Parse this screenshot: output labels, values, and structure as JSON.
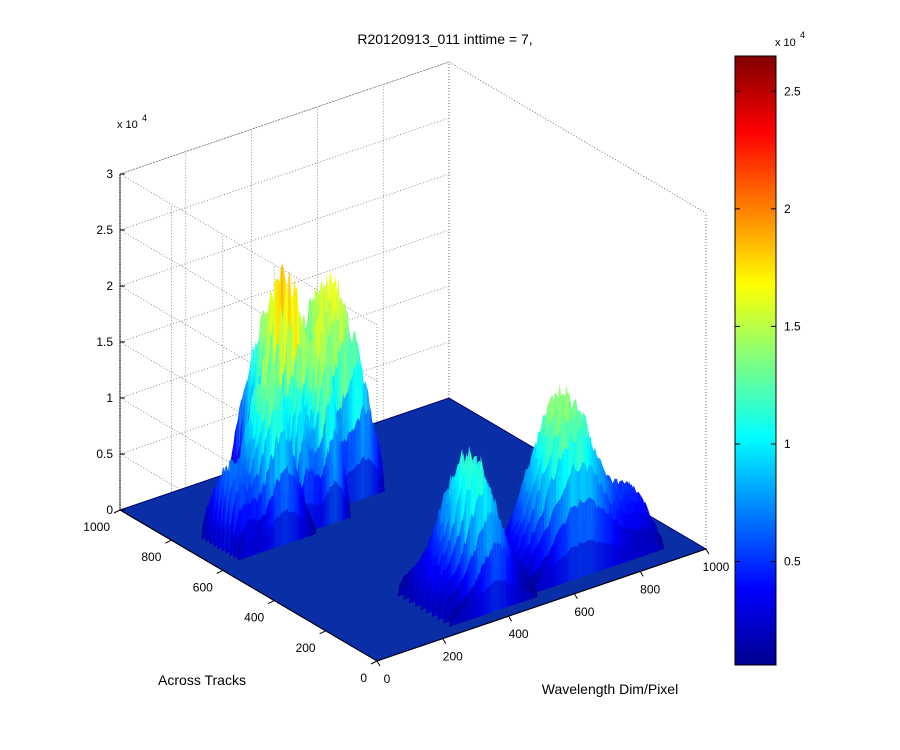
{
  "chart_data": {
    "type": "surface",
    "title": "R20120913_011 inttime = 7,",
    "xlabel": "Wavelength Dim/Pixel",
    "ylabel": "Across Tracks",
    "zlabel": "",
    "x_ticks": [
      "0",
      "200",
      "400",
      "600",
      "800",
      "1000"
    ],
    "y_ticks": [
      "0",
      "200",
      "400",
      "600",
      "800",
      "1000"
    ],
    "z_ticks": [
      "0",
      "0.5",
      "1",
      "1.5",
      "2",
      "2.5",
      "3"
    ],
    "z_multiplier": "x 10",
    "z_exponent": "4",
    "xlim": [
      0,
      1000
    ],
    "ylim": [
      0,
      1000
    ],
    "zlim": [
      0,
      30000
    ],
    "grid": true,
    "colormap": "jet",
    "colorbar": {
      "ticks": [
        "0.5",
        "1",
        "1.5",
        "2",
        "2.5"
      ],
      "multiplier": "x 10",
      "exponent": "4",
      "range": [
        600,
        26500
      ]
    },
    "peaks": [
      {
        "x_range": [
          300,
          570
        ],
        "y_range": [
          700,
          960
        ],
        "max_z": 26500
      },
      {
        "x_range": [
          260,
          420
        ],
        "y_range": [
          640,
          760
        ],
        "max_z": 22000
      },
      {
        "x_range": [
          60,
          300
        ],
        "y_range": [
          620,
          760
        ],
        "max_z": 17000
      },
      {
        "x_range": [
          250,
          520
        ],
        "y_range": [
          40,
          240
        ],
        "max_z": 14000
      },
      {
        "x_range": [
          480,
          920
        ],
        "y_range": [
          60,
          220
        ],
        "max_z": 16500
      }
    ]
  },
  "colors": {
    "jet": [
      "#00008f",
      "#0000ff",
      "#00ffff",
      "#ffff00",
      "#ff0000",
      "#800000"
    ],
    "floor": "#0a2ea6"
  }
}
